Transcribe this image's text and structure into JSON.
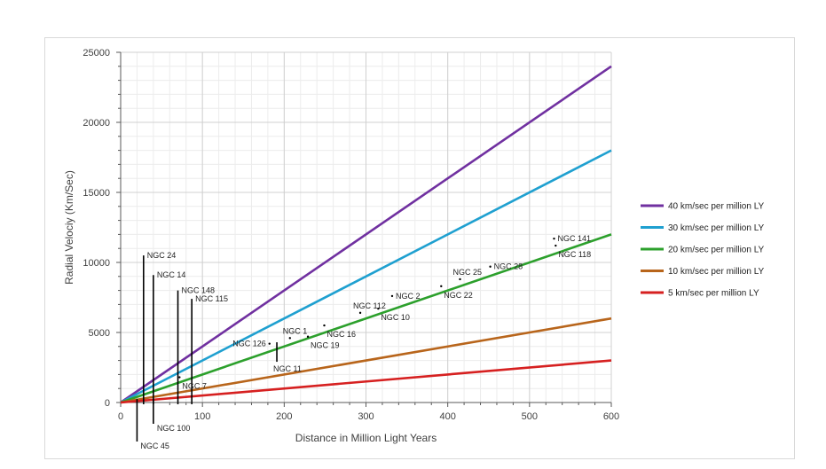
{
  "chart_data": {
    "type": "line",
    "xlabel": "Distance in Million Light Years",
    "ylabel": "Radial Velociy (Km/Sec)",
    "xlim": [
      0,
      600
    ],
    "ylim": [
      0,
      25000
    ],
    "xticks": [
      "0",
      "100",
      "200",
      "300",
      "400",
      "500",
      "600"
    ],
    "yticks": [
      "0",
      "5000",
      "10000",
      "15000",
      "20000",
      "25000"
    ],
    "grid": true,
    "legend_position": "right",
    "series": [
      {
        "name": "40 km/sec per million LY",
        "color": "#7030a0",
        "x": [
          0,
          600
        ],
        "y": [
          0,
          24000
        ]
      },
      {
        "name": "30 km/sec per million LY",
        "color": "#1fa0d0",
        "x": [
          0,
          600
        ],
        "y": [
          0,
          18000
        ]
      },
      {
        "name": "20 km/sec per million LY",
        "color": "#2ca02c",
        "x": [
          0,
          600
        ],
        "y": [
          0,
          12000
        ]
      },
      {
        "name": "10 km/sec per million LY",
        "color": "#b8651b",
        "x": [
          0,
          600
        ],
        "y": [
          0,
          6000
        ]
      },
      {
        "name": "5 km/sec per million LY",
        "color": "#d62020",
        "x": [
          0,
          600
        ],
        "y": [
          0,
          3000
        ]
      }
    ],
    "galaxies": [
      {
        "label": "NGC 24",
        "x": 28,
        "y": 10500,
        "style": "bar"
      },
      {
        "label": "NGC 14",
        "x": 40,
        "y": 9100,
        "style": "bar"
      },
      {
        "label": "NGC 148",
        "x": 70,
        "y": 8000,
        "style": "bar"
      },
      {
        "label": "NGC 115",
        "x": 87,
        "y": 7400,
        "style": "bar"
      },
      {
        "label": "NGC 45",
        "x": 20,
        "y": 400,
        "style": "bar_below"
      },
      {
        "label": "NGC 100",
        "x": 40,
        "y": 400,
        "style": "bar_below"
      },
      {
        "label": "NGC 7",
        "x": 72,
        "y": 1800,
        "style": "label_below"
      },
      {
        "label": "NGC 126",
        "x": 182,
        "y": 4200,
        "style": "label_left"
      },
      {
        "label": "NGC 11",
        "x": 191,
        "y": 4300,
        "style": "bar_below"
      },
      {
        "label": "NGC 1",
        "x": 207,
        "y": 4600,
        "style": "label_above"
      },
      {
        "label": "NGC 19",
        "x": 229,
        "y": 4700,
        "style": "label_below"
      },
      {
        "label": "NGC 16",
        "x": 249,
        "y": 5500,
        "style": "label_below"
      },
      {
        "label": "NGC 112",
        "x": 293,
        "y": 6400,
        "style": "label_above"
      },
      {
        "label": "NGC 10",
        "x": 315,
        "y": 6700,
        "style": "label_below"
      },
      {
        "label": "NGC 2",
        "x": 332,
        "y": 7600,
        "style": "label_right"
      },
      {
        "label": "NGC 22",
        "x": 392,
        "y": 8300,
        "style": "label_below"
      },
      {
        "label": "NGC 25",
        "x": 415,
        "y": 8800,
        "style": "label_above"
      },
      {
        "label": "NGC 28",
        "x": 452,
        "y": 9700,
        "style": "label_right"
      },
      {
        "label": "NGC 141",
        "x": 530,
        "y": 11700,
        "style": "label_right"
      },
      {
        "label": "NGC 118",
        "x": 532,
        "y": 11200,
        "style": "label_below"
      }
    ]
  }
}
